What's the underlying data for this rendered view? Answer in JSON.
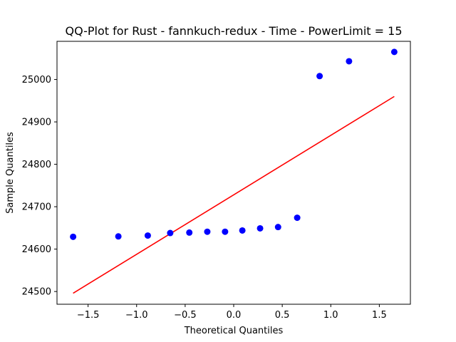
{
  "chart_data": {
    "type": "scatter",
    "title": "QQ-Plot for Rust - fannkuch-redux - Time - PowerLimit = 15",
    "xlabel": "Theoretical Quantiles",
    "ylabel": "Sample Quantiles",
    "xlim": [
      -1.82,
      1.82
    ],
    "ylim": [
      24470,
      25090
    ],
    "xticks": [
      -1.5,
      -1.0,
      -0.5,
      0.0,
      0.5,
      1.0,
      1.5
    ],
    "xtick_labels": [
      "−1.5",
      "−1.0",
      "−0.5",
      "0.0",
      "0.5",
      "1.0",
      "1.5"
    ],
    "yticks": [
      24500,
      24600,
      24700,
      24800,
      24900,
      25000
    ],
    "ytick_labels": [
      "24500",
      "24600",
      "24700",
      "24800",
      "24900",
      "25000"
    ],
    "grid": false,
    "points": {
      "color": "#0000ff",
      "x": [
        -1.654,
        -1.188,
        -0.885,
        -0.654,
        -0.457,
        -0.272,
        -0.089,
        0.089,
        0.272,
        0.457,
        0.654,
        0.885,
        1.188,
        1.654
      ],
      "y": [
        24629,
        24630,
        24632,
        24638,
        24639,
        24641,
        24641,
        24644,
        24649,
        24652,
        24674,
        25008,
        25043,
        25065
      ]
    },
    "reference_line": {
      "color": "#ff0000",
      "x": [
        -1.654,
        1.654
      ],
      "y": [
        24496,
        24960
      ]
    }
  }
}
